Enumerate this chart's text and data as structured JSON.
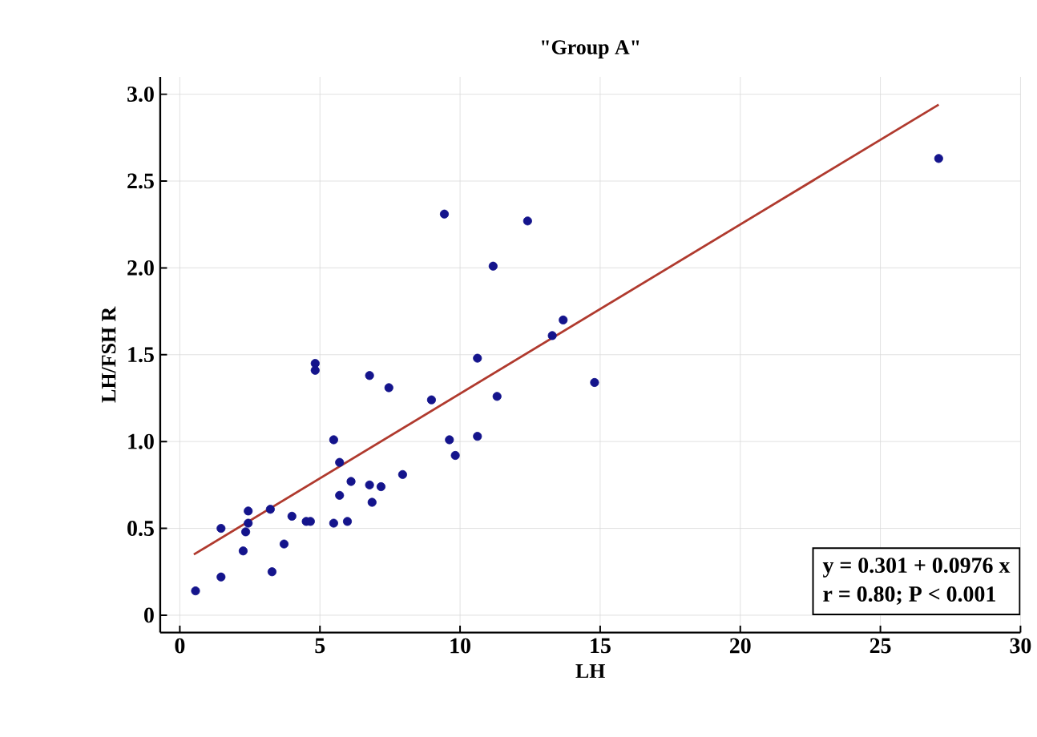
{
  "chart_data": {
    "type": "scatter",
    "title": "\"Group A\"",
    "xlabel": "LH",
    "ylabel": "LH/FSH R",
    "x": [
      0.56,
      1.47,
      1.47,
      2.26,
      2.35,
      2.44,
      2.44,
      3.23,
      3.29,
      3.72,
      4.0,
      4.51,
      4.66,
      4.83,
      4.83,
      5.49,
      5.49,
      5.7,
      5.7,
      5.98,
      6.11,
      6.77,
      6.77,
      6.86,
      7.18,
      7.46,
      7.95,
      8.98,
      9.44,
      9.62,
      9.83,
      10.62,
      10.62,
      11.18,
      11.32,
      12.41,
      13.29,
      13.68,
      14.8,
      27.08
    ],
    "series": [
      {
        "color": "#14148c",
        "marker": "circle",
        "values": [
          0.14,
          0.22,
          0.5,
          0.37,
          0.48,
          0.6,
          0.53,
          0.61,
          0.25,
          0.41,
          0.57,
          0.54,
          0.54,
          1.45,
          1.41,
          1.01,
          0.53,
          0.88,
          0.69,
          0.54,
          0.77,
          1.38,
          0.75,
          0.65,
          0.74,
          1.31,
          0.81,
          1.24,
          2.31,
          1.01,
          0.92,
          1.48,
          1.03,
          2.01,
          1.26,
          2.27,
          1.61,
          1.7,
          1.34,
          2.63
        ]
      },
      {
        "type": "line",
        "color": "#b03a2e",
        "x": [
          0.5,
          27.08
        ],
        "values": [
          0.35,
          2.94
        ],
        "marker": "none"
      }
    ],
    "xlim": [
      -0.7,
      30
    ],
    "ylim": [
      -0.1,
      3.1
    ],
    "xticks": [
      0,
      5,
      10,
      15,
      20,
      25,
      30
    ],
    "yticks": [
      0,
      0.5,
      {
        "value": 1,
        "label": "1.0"
      },
      1.5,
      {
        "value": 2,
        "label": "2.0"
      },
      2.5,
      {
        "value": 3,
        "label": "3.0"
      }
    ],
    "grid": true,
    "annotations": [
      "y = 0.301  +  0.0976  x",
      "r = 0.80; P < 0.001"
    ]
  }
}
